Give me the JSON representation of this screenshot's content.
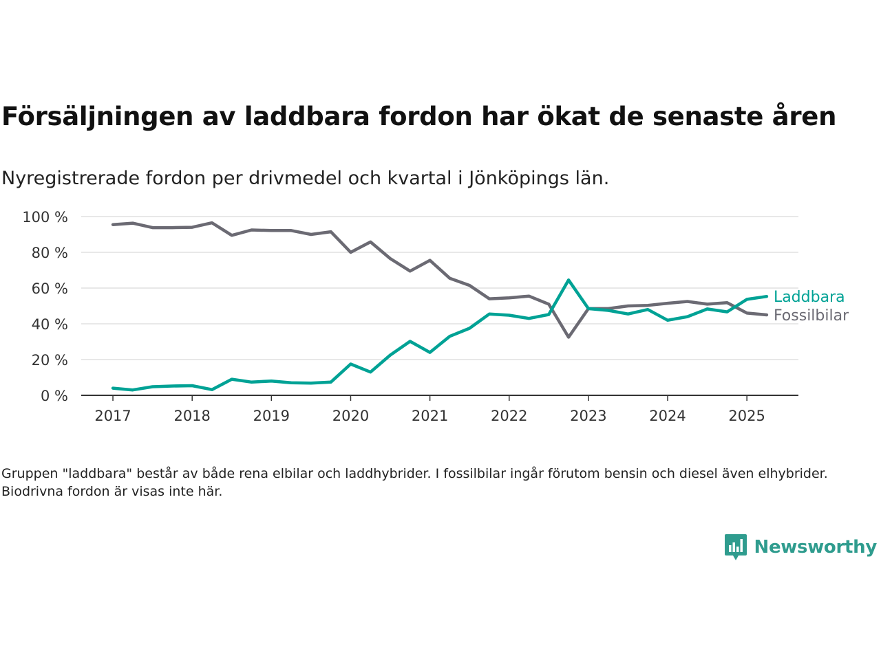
{
  "title": "Försäljningen av laddbara fordon har ökat de senaste åren",
  "subtitle": "Nyregistrerade fordon per drivmedel och kvartal i Jönköpings län.",
  "footnote": "Gruppen \"laddbara\" består av både rena elbilar och laddhybrider. I fossilbilar ingår förutom bensin och diesel även elhybrider. Biodrivna fordon är visas inte här.",
  "brand": {
    "name": "Newsworthy",
    "logo_icon": "bar-chart-speech-bubble-icon",
    "color": "#2f9c8e"
  },
  "chart_data": {
    "type": "line",
    "x_ticks": [
      "2017",
      "2018",
      "2019",
      "2020",
      "2021",
      "2022",
      "2023",
      "2024",
      "2025"
    ],
    "y_ticks": [
      "0 %",
      "20 %",
      "40 %",
      "60 %",
      "80 %",
      "100 %"
    ],
    "ylim": [
      0,
      100
    ],
    "xlim": [
      2016.6,
      2025.65
    ],
    "grid": true,
    "x": [
      2017.0,
      2017.25,
      2017.5,
      2017.75,
      2018.0,
      2018.25,
      2018.5,
      2018.75,
      2019.0,
      2019.25,
      2019.5,
      2019.75,
      2020.0,
      2020.25,
      2020.5,
      2020.75,
      2021.0,
      2021.25,
      2021.5,
      2021.75,
      2022.0,
      2022.25,
      2022.5,
      2022.75,
      2023.0,
      2023.25,
      2023.5,
      2023.75,
      2024.0,
      2024.25,
      2024.5,
      2024.75,
      2025.0,
      2025.25
    ],
    "series": [
      {
        "name": "Fossilbilar",
        "color": "#6b6a73",
        "values": [
          95.5,
          96.3,
          93.8,
          93.8,
          94.0,
          96.5,
          89.5,
          92.5,
          92.2,
          92.2,
          90.0,
          91.5,
          80.0,
          85.8,
          76.5,
          69.5,
          75.5,
          65.5,
          61.5,
          54.0,
          54.5,
          55.5,
          51.0,
          32.5,
          48.5,
          48.5,
          50.0,
          50.3,
          51.5,
          52.5,
          51.0,
          51.8,
          46.0,
          45.0
        ]
      },
      {
        "name": "Laddbara",
        "color": "#00a295",
        "values": [
          4.0,
          3.0,
          4.8,
          5.2,
          5.4,
          3.2,
          9.0,
          7.4,
          8.0,
          7.0,
          6.8,
          7.4,
          17.5,
          13.0,
          22.5,
          30.2,
          24.0,
          33.0,
          37.5,
          45.5,
          44.8,
          43.0,
          45.2,
          64.5,
          48.5,
          47.5,
          45.5,
          48.0,
          42.0,
          44.0,
          48.3,
          46.7,
          53.7,
          55.3
        ]
      }
    ]
  }
}
